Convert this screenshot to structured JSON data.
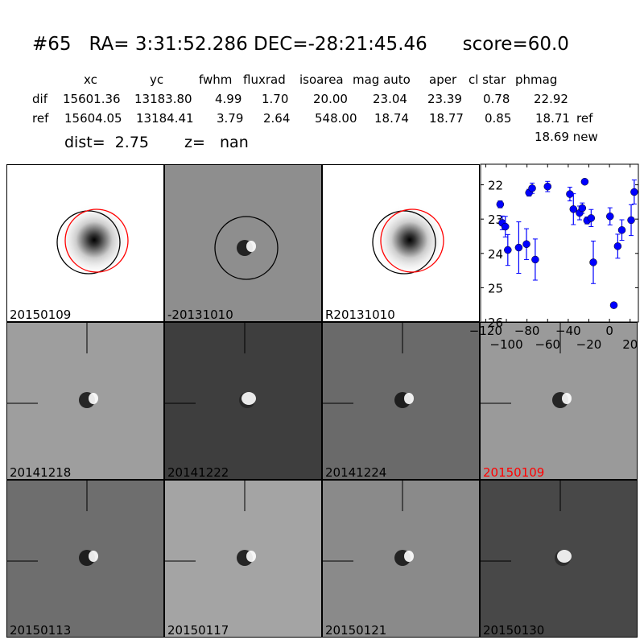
{
  "header": {
    "title": "#65   RA= 3:31:52.286 DEC=-28:21:45.46      score=60.0",
    "columns": [
      "xc",
      "yc",
      "fwhm",
      "fluxrad",
      "isoarea",
      "mag auto",
      "aper",
      "cl star",
      "phmag"
    ],
    "rows": [
      {
        "label": "dif",
        "values": [
          "15601.36",
          "13183.80",
          "4.99",
          "1.70",
          "20.00",
          "23.04",
          "23.39",
          "0.78",
          "22.92"
        ],
        "suffix": ""
      },
      {
        "label": "ref",
        "values": [
          "15604.05",
          "13184.41",
          "3.79",
          "2.64",
          "548.00",
          "18.74",
          "18.77",
          "0.85",
          "18.71"
        ],
        "suffix": "ref"
      }
    ],
    "new_phmag": "18.69 new",
    "dist": "dist=  2.75",
    "z": "z=   nan"
  },
  "panels": [
    {
      "label": "20150109",
      "bg": "#ffffff",
      "kind": "star",
      "label_color": "#000000"
    },
    {
      "label": "-20131010",
      "bg": "#8e8e8e",
      "kind": "dipole",
      "label_color": "#000000"
    },
    {
      "label": "R20131010",
      "bg": "#ffffff",
      "kind": "star",
      "label_color": "#000000"
    },
    {
      "label": "20141218",
      "bg": "#9e9e9e",
      "kind": "dipole",
      "label_color": "#000000"
    },
    {
      "label": "20141222",
      "bg": "#3e3e3e",
      "kind": "bright",
      "label_color": "#000000"
    },
    {
      "label": "20141224",
      "bg": "#6a6a6a",
      "kind": "dipole",
      "label_color": "#000000"
    },
    {
      "label": "20150109",
      "bg": "#9a9a9a",
      "kind": "dipole",
      "label_color": "#ff0000"
    },
    {
      "label": "20150113",
      "bg": "#6e6e6e",
      "kind": "dipole",
      "label_color": "#000000"
    },
    {
      "label": "20150117",
      "bg": "#a4a4a4",
      "kind": "dipole",
      "label_color": "#000000"
    },
    {
      "label": "20150121",
      "bg": "#8a8a8a",
      "kind": "dipole",
      "label_color": "#000000"
    },
    {
      "label": "20150130",
      "bg": "#484848",
      "kind": "bright",
      "label_color": "#000000"
    }
  ],
  "chart_data": {
    "type": "scatter",
    "xlim": [
      -125,
      28
    ],
    "ylim": [
      26,
      21.4
    ],
    "y_inverted": true,
    "xticks": [
      -120,
      -100,
      -80,
      -60,
      -40,
      -20,
      0,
      20
    ],
    "xtick_labels": [
      "−120",
      "−100",
      "−80",
      "−60",
      "−40",
      "−20",
      "0",
      "20"
    ],
    "yticks": [
      22,
      23,
      24,
      25,
      26
    ],
    "ytick_labels": [
      "22",
      "23",
      "24",
      "25",
      "26"
    ],
    "color": "#0000ff",
    "points": [
      [
        -106,
        22.57,
        0.1
      ],
      [
        -104,
        23.11,
        0.2
      ],
      [
        -101,
        23.22,
        0.3
      ],
      [
        -98.6,
        23.9,
        0.45
      ],
      [
        -88,
        23.83,
        0.75
      ],
      [
        -80.5,
        23.73,
        0.45
      ],
      [
        -78,
        22.23,
        0.1
      ],
      [
        -75,
        22.1,
        0.15
      ],
      [
        -72,
        24.18,
        0.6
      ],
      [
        -60,
        22.05,
        0.15
      ],
      [
        -38.4,
        22.27,
        0.2
      ],
      [
        -35,
        22.71,
        0.45
      ],
      [
        -29,
        22.82,
        0.2
      ],
      [
        -26.4,
        22.68,
        0.15
      ],
      [
        -24,
        21.91,
        0.05
      ],
      [
        -21.7,
        23.04,
        0.1
      ],
      [
        -17.8,
        22.97,
        0.25
      ],
      [
        -15.7,
        24.26,
        0.62
      ],
      [
        0.5,
        22.92,
        0.25
      ],
      [
        4.2,
        25.51,
        0.08
      ],
      [
        8,
        23.79,
        0.35
      ],
      [
        12,
        23.32,
        0.3
      ],
      [
        21,
        23.03,
        0.45
      ],
      [
        24,
        22.21,
        0.35
      ]
    ]
  }
}
